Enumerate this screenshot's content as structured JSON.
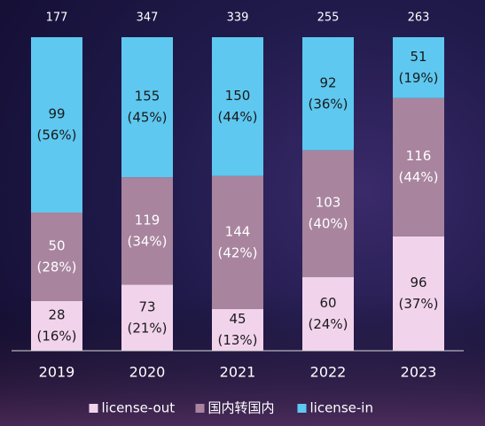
{
  "chart_data": {
    "type": "bar",
    "stacked": "percent",
    "categories": [
      "2019",
      "2020",
      "2021",
      "2022",
      "2023"
    ],
    "totals": [
      177,
      347,
      339,
      255,
      263
    ],
    "series": [
      {
        "name": "license-out",
        "color": "#f2d3ec",
        "label_color": "#1a1a1a",
        "values": [
          28,
          73,
          45,
          60,
          96
        ],
        "percent_labels": [
          "(16%)",
          "(21%)",
          "(13%)",
          "(24%)",
          "(37%)"
        ]
      },
      {
        "name": "国内转国内",
        "color": "#a8849e",
        "label_color": "#ffffff",
        "values": [
          50,
          119,
          144,
          103,
          116
        ],
        "percent_labels": [
          "(28%)",
          "(34%)",
          "(42%)",
          "(40%)",
          "(44%)"
        ]
      },
      {
        "name": "license-in",
        "color": "#5ec8f0",
        "label_color": "#1a1a1a",
        "values": [
          99,
          155,
          150,
          92,
          51
        ],
        "percent_labels": [
          "(56%)",
          "(45%)",
          "(44%)",
          "(36%)",
          "(19%)"
        ]
      }
    ],
    "legend": "bottom"
  }
}
